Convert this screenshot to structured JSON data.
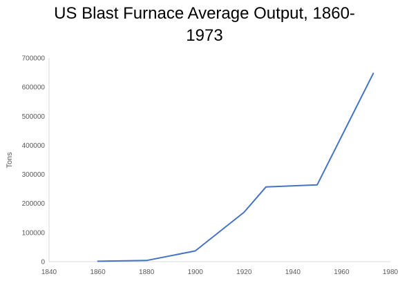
{
  "chart_data": {
    "type": "line",
    "title_lines": [
      "US Blast Furnace Average Output, 1860-",
      "1973"
    ],
    "xlabel": "",
    "ylabel": "Tons",
    "xlim": [
      1840,
      1980
    ],
    "ylim": [
      0,
      700000
    ],
    "xticks": [
      1840,
      1860,
      1880,
      1900,
      1920,
      1940,
      1960,
      1980
    ],
    "yticks": [
      0,
      100000,
      200000,
      300000,
      400000,
      500000,
      600000,
      700000
    ],
    "grid": false,
    "legend": "none",
    "series": [
      {
        "color": "#4472C4",
        "x": [
          1860,
          1880,
          1900,
          1920,
          1929,
          1950,
          1973
        ],
        "y": [
          1500,
          4000,
          37000,
          170000,
          257000,
          264000,
          647000
        ]
      }
    ]
  }
}
